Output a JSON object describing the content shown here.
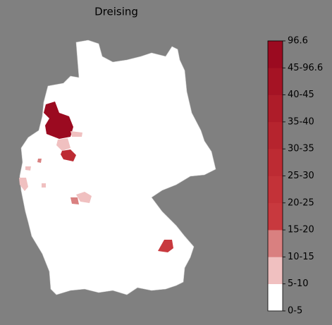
{
  "title": "Dreising",
  "colorbar": {
    "labels": [
      "0-5",
      "5-10",
      "10-15",
      "15-20",
      "20-25",
      "25-30",
      "30-35",
      "35-40",
      "40-45",
      "45-96.6",
      "96.6"
    ],
    "colors": [
      "#ffffff",
      "#f0c0c0",
      "#d98080",
      "#c8393e",
      "#c33238",
      "#bd2b33",
      "#b6242e",
      "#ae1c29",
      "#a51324",
      "#9b0a20"
    ]
  }
}
